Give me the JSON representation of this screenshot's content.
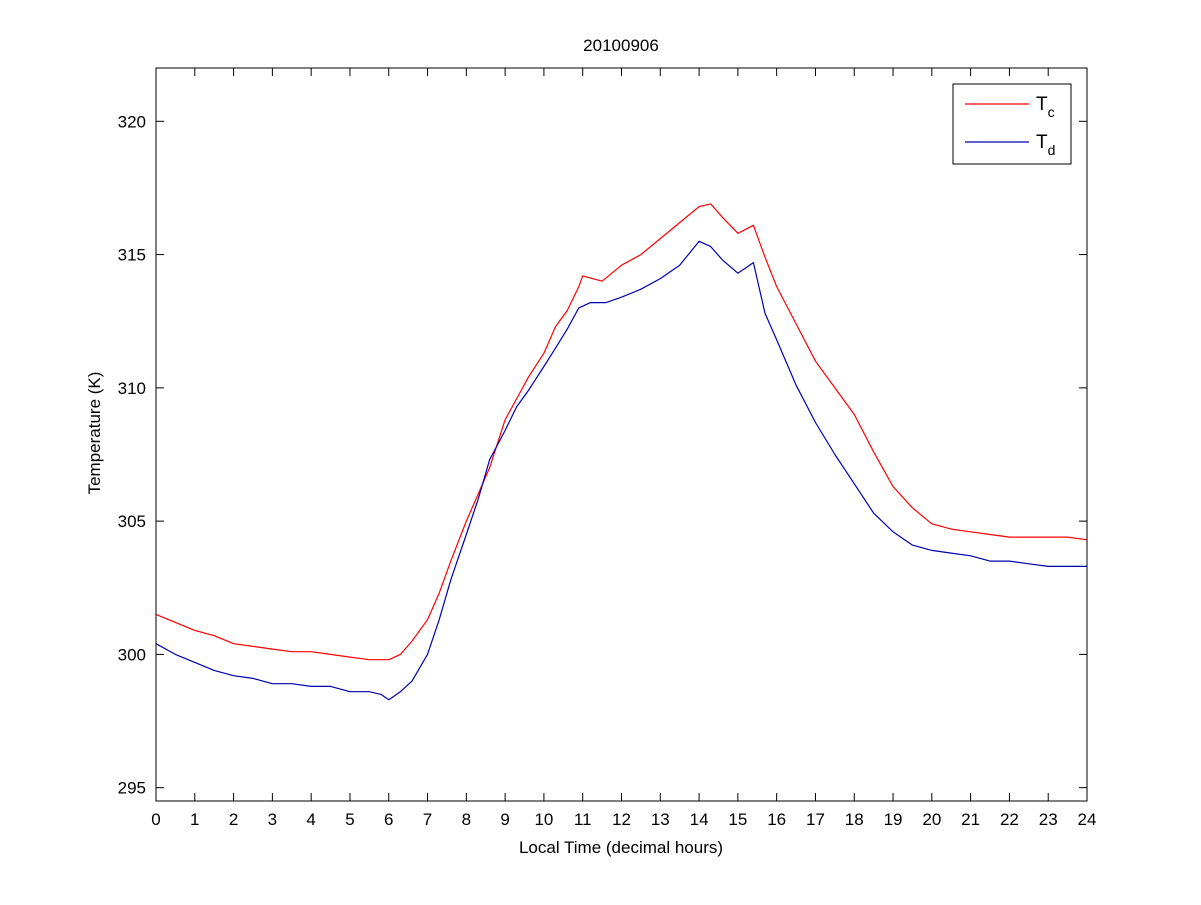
{
  "chart_data": {
    "type": "line",
    "title": "20100906",
    "xlabel": "Local Time (decimal hours)",
    "ylabel": "Temperature (K)",
    "xlim": [
      0,
      24
    ],
    "ylim": [
      294.5,
      322
    ],
    "xticks": [
      0,
      1,
      2,
      3,
      4,
      5,
      6,
      7,
      8,
      9,
      10,
      11,
      12,
      13,
      14,
      15,
      16,
      17,
      18,
      19,
      20,
      21,
      22,
      23,
      24
    ],
    "yticks": [
      295,
      300,
      305,
      310,
      315,
      320
    ],
    "grid": false,
    "legend_position": "top-right",
    "series": [
      {
        "name": "T",
        "subscript": "c",
        "color": "#ff0000",
        "x": [
          0,
          0.5,
          1,
          1.5,
          2,
          2.5,
          3,
          3.5,
          4,
          4.5,
          5,
          5.5,
          6,
          6.3,
          6.6,
          7,
          7.3,
          7.6,
          8,
          8.3,
          8.6,
          9,
          9.3,
          9.6,
          10,
          10.3,
          10.6,
          10.9,
          11,
          11.5,
          12,
          12.5,
          13,
          13.5,
          14,
          14.3,
          14.6,
          15,
          15.4,
          15.7,
          16,
          16.5,
          17,
          17.5,
          18,
          18.5,
          19,
          19.5,
          20,
          20.5,
          21,
          21.5,
          22,
          22.5,
          23,
          23.5,
          24
        ],
        "y": [
          301.5,
          301.2,
          300.9,
          300.7,
          300.4,
          300.3,
          300.2,
          300.1,
          300.1,
          300.0,
          299.9,
          299.8,
          299.8,
          300.0,
          300.5,
          301.3,
          302.3,
          303.5,
          305.0,
          306.0,
          307.0,
          308.8,
          309.6,
          310.4,
          311.3,
          312.3,
          312.9,
          313.8,
          314.2,
          314.0,
          314.6,
          315.0,
          315.6,
          316.2,
          316.8,
          316.9,
          316.4,
          315.8,
          316.1,
          314.9,
          313.8,
          312.4,
          311.0,
          310.0,
          309.0,
          307.6,
          306.3,
          305.5,
          304.9,
          304.7,
          304.6,
          304.5,
          304.4,
          304.4,
          304.4,
          304.4,
          304.3
        ]
      },
      {
        "name": "T",
        "subscript": "d",
        "color": "#0000b3",
        "x": [
          0,
          0.5,
          1,
          1.5,
          2,
          2.5,
          3,
          3.5,
          4,
          4.5,
          5,
          5.5,
          5.8,
          6,
          6.3,
          6.6,
          7,
          7.3,
          7.6,
          8,
          8.3,
          8.6,
          9,
          9.3,
          9.6,
          10,
          10.3,
          10.6,
          10.9,
          11.2,
          11.6,
          12,
          12.5,
          13,
          13.5,
          14,
          14.3,
          14.6,
          15,
          15.4,
          15.7,
          16,
          16.5,
          17,
          17.5,
          18,
          18.5,
          19,
          19.5,
          20,
          20.5,
          21,
          21.5,
          22,
          22.5,
          23,
          23.5,
          24
        ],
        "y": [
          300.4,
          300.0,
          299.7,
          299.4,
          299.2,
          299.1,
          298.9,
          298.9,
          298.8,
          298.8,
          298.6,
          298.6,
          298.5,
          298.3,
          298.6,
          299.0,
          300.0,
          301.3,
          302.8,
          304.5,
          305.8,
          307.3,
          308.4,
          309.3,
          309.9,
          310.8,
          311.5,
          312.2,
          313.0,
          313.2,
          313.2,
          313.4,
          313.7,
          314.1,
          314.6,
          315.5,
          315.3,
          314.8,
          314.3,
          314.7,
          312.8,
          311.8,
          310.1,
          308.7,
          307.5,
          306.4,
          305.3,
          304.6,
          304.1,
          303.9,
          303.8,
          303.7,
          303.5,
          303.5,
          303.4,
          303.3,
          303.3,
          303.3
        ]
      }
    ]
  }
}
